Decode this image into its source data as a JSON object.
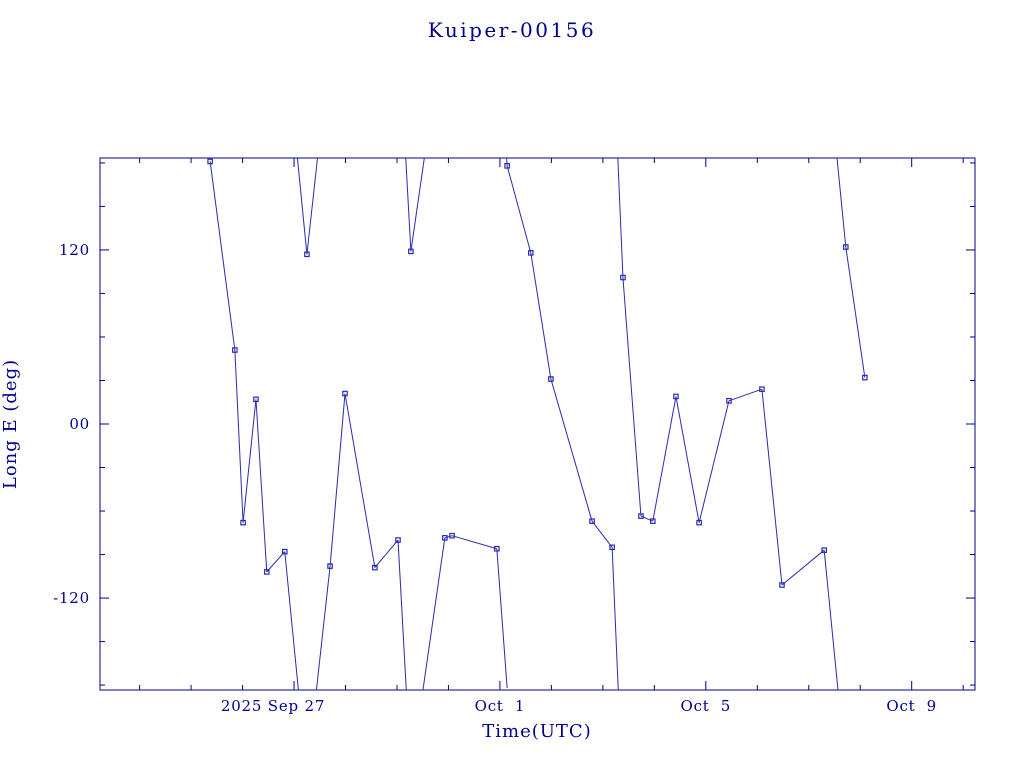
{
  "colors": {
    "foreground": "#00008b",
    "line": "#2a2ab0",
    "background": "#ffffff"
  },
  "chart_data": {
    "type": "line",
    "title": "Kuiper-00156",
    "xlabel": "Time(UTC)",
    "ylabel": "Long E (deg)",
    "x_range": [
      0,
      17
    ],
    "ylim": [
      -183.4,
      183.4
    ],
    "grid": false,
    "legend": false,
    "marker": "open-square",
    "wrap_degrees": 360,
    "x_major_ticks": [
      {
        "t": 3.77,
        "label": "2025 Sep 27",
        "dx": -21
      },
      {
        "t": 7.77,
        "label": "Oct  1",
        "dx": 0
      },
      {
        "t": 11.77,
        "label": "Oct  5",
        "dx": 0
      },
      {
        "t": 15.77,
        "label": "Oct  9",
        "dx": 0
      }
    ],
    "x_minor_ticks_days": [
      0.77,
      1.77,
      2.77,
      4.77,
      5.77,
      6.77,
      8.77,
      9.77,
      10.77,
      12.77,
      13.77,
      14.77,
      16.77
    ],
    "y_major_ticks": [
      {
        "v": 120,
        "label": "120"
      },
      {
        "v": 0,
        "label": "00"
      },
      {
        "v": -120,
        "label": "-120"
      }
    ],
    "y_minor_ticks": [
      180,
      150,
      90,
      60,
      30,
      -30,
      -60,
      -90,
      -150,
      -180
    ],
    "series": [
      {
        "name": "long-e",
        "points": [
          [
            2.14,
            181
          ],
          [
            2.62,
            51
          ],
          [
            2.78,
            -68
          ],
          [
            3.03,
            17
          ],
          [
            3.24,
            -102
          ],
          [
            3.59,
            -88
          ],
          [
            4.02,
            117
          ],
          [
            4.47,
            -98
          ],
          [
            4.76,
            21
          ],
          [
            5.34,
            -99
          ],
          [
            5.79,
            -80
          ],
          [
            6.04,
            119
          ],
          [
            6.7,
            -78.5
          ],
          [
            6.84,
            -77
          ],
          [
            7.71,
            -86
          ],
          [
            7.91,
            178
          ],
          [
            8.37,
            118
          ],
          [
            8.76,
            31
          ],
          [
            9.56,
            -67
          ],
          [
            9.95,
            -85
          ],
          [
            10.16,
            101
          ],
          [
            10.51,
            -63.5
          ],
          [
            10.74,
            -67
          ],
          [
            11.19,
            19
          ],
          [
            11.64,
            -68
          ],
          [
            12.22,
            16
          ],
          [
            12.86,
            24
          ],
          [
            13.25,
            -111
          ],
          [
            14.07,
            -87
          ],
          [
            14.49,
            122
          ],
          [
            14.86,
            32
          ]
        ]
      }
    ]
  }
}
